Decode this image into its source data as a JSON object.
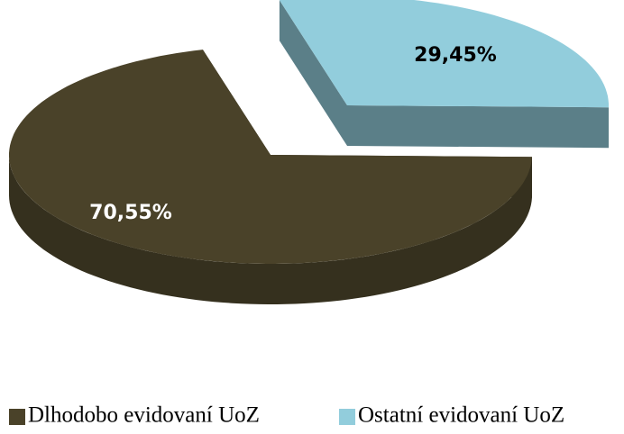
{
  "chart_data": {
    "type": "pie",
    "categories": [
      "Dlhodobo evidovaní UoZ",
      "Ostatní evidovaní UoZ"
    ],
    "values": [
      70.55,
      29.45
    ],
    "value_labels": [
      "70,55%",
      "29,45%"
    ],
    "colors": [
      "#4a4229",
      "#92cddc"
    ],
    "legend": "bottom"
  }
}
